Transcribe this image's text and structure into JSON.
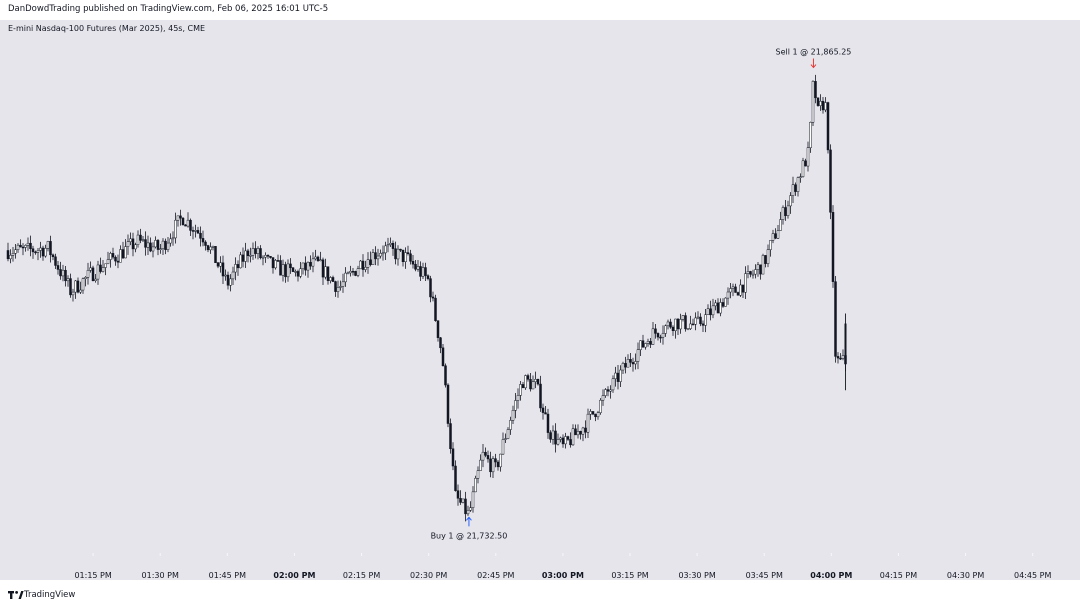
{
  "header": {
    "published_text": "DanDowdTrading published on TradingView.com, Feb 06, 2025 16:01 UTC-5"
  },
  "symbol": {
    "title": "E-mini Nasdaq-100 Futures (Mar 2025), 45s, CME"
  },
  "footer": {
    "brand": "TradingView"
  },
  "chart_data": {
    "type": "candlestick",
    "title": "E-mini Nasdaq-100 Futures (Mar 2025), 45s, CME",
    "x_range": [
      "01:00 PM",
      "04:52 PM"
    ],
    "x_ticks": [
      {
        "label": "01:15 PM",
        "bold": false
      },
      {
        "label": "01:30 PM",
        "bold": false
      },
      {
        "label": "01:45 PM",
        "bold": false
      },
      {
        "label": "02:00 PM",
        "bold": true
      },
      {
        "label": "02:15 PM",
        "bold": false
      },
      {
        "label": "02:30 PM",
        "bold": false
      },
      {
        "label": "02:45 PM",
        "bold": false
      },
      {
        "label": "03:00 PM",
        "bold": true
      },
      {
        "label": "03:15 PM",
        "bold": false
      },
      {
        "label": "03:30 PM",
        "bold": false
      },
      {
        "label": "03:45 PM",
        "bold": false
      },
      {
        "label": "04:00 PM",
        "bold": true
      },
      {
        "label": "04:15 PM",
        "bold": false
      },
      {
        "label": "04:30 PM",
        "bold": false
      },
      {
        "label": "04:45 PM",
        "bold": false
      }
    ],
    "price_path": [
      [
        "01:00 PM",
        21811.9
      ],
      [
        "01:05 PM",
        21812.6
      ],
      [
        "01:10 PM",
        21799.7
      ],
      [
        "01:15 PM",
        21805.3
      ],
      [
        "01:20 PM",
        21810.1
      ],
      [
        "01:25 PM",
        21814.6
      ],
      [
        "01:30 PM",
        21812.2
      ],
      [
        "01:35 PM",
        21822.0
      ],
      [
        "01:40 PM",
        21815.6
      ],
      [
        "01:45 PM",
        21801.9
      ],
      [
        "01:50 PM",
        21812.6
      ],
      [
        "01:55 PM",
        21807.3
      ],
      [
        "02:00 PM",
        21804.9
      ],
      [
        "02:05 PM",
        21808.1
      ],
      [
        "02:10 PM",
        21800.6
      ],
      [
        "02:15 PM",
        21808.4
      ],
      [
        "02:20 PM",
        21812.6
      ],
      [
        "02:25 PM",
        21809.6
      ],
      [
        "02:30 PM",
        21802.9
      ],
      [
        "02:33 PM",
        21780.7
      ],
      [
        "02:36 PM",
        21738.0
      ],
      [
        "02:39 PM",
        21732.5
      ],
      [
        "02:42 PM",
        21750.6
      ],
      [
        "02:45 PM",
        21746.2
      ],
      [
        "02:48 PM",
        21760.4
      ],
      [
        "02:51 PM",
        21773.0
      ],
      [
        "02:54 PM",
        21771.6
      ],
      [
        "02:57 PM",
        21757.7
      ],
      [
        "03:00 PM",
        21752.9
      ],
      [
        "03:05 PM",
        21759.7
      ],
      [
        "03:10 PM",
        21769.3
      ],
      [
        "03:15 PM",
        21779.2
      ],
      [
        "03:20 PM",
        21786.8
      ],
      [
        "03:25 PM",
        21790.6
      ],
      [
        "03:30 PM",
        21789.5
      ],
      [
        "03:35 PM",
        21796.0
      ],
      [
        "03:40 PM",
        21801.5
      ],
      [
        "03:45 PM",
        21808.4
      ],
      [
        "03:50 PM",
        21825.5
      ],
      [
        "03:55 PM",
        21841.3
      ],
      [
        "03:56 PM",
        21862.9
      ],
      [
        "03:57 PM",
        21853.0
      ],
      [
        "03:58 PM",
        21856.2
      ],
      [
        "03:59 PM",
        21854.5
      ],
      [
        "04:00 PM",
        21813.4
      ],
      [
        "04:01 PM",
        21778.5
      ]
    ],
    "ylim": [
      21729,
      21869
    ],
    "up_color": "#131722",
    "down_color": "#131722",
    "background": "#e6e5ec",
    "annotations": [
      {
        "text": "Sell 1 @ 21,865.25",
        "time": "03:56 PM",
        "price": 21865.25,
        "side": "sell",
        "arrow": "down",
        "color": "#e53935"
      },
      {
        "text": "Buy 1 @ 21,732.50",
        "time": "02:39 PM",
        "price": 21732.5,
        "side": "buy",
        "arrow": "up",
        "color": "#2962ff"
      }
    ]
  }
}
